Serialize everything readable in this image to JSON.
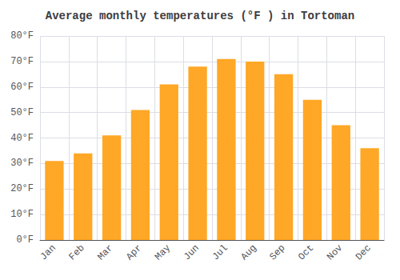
{
  "chart_data": {
    "type": "bar",
    "title": "Average monthly temperatures (°F ) in Tortoman",
    "categories": [
      "Jan",
      "Feb",
      "Mar",
      "Apr",
      "May",
      "Jun",
      "Jul",
      "Aug",
      "Sep",
      "Oct",
      "Nov",
      "Dec"
    ],
    "values": [
      31,
      34,
      41,
      51,
      61,
      68,
      71,
      70,
      65,
      55,
      45,
      36
    ],
    "color": "#FFA726",
    "ylim": [
      0,
      80
    ],
    "yticks": [
      {
        "value": 0,
        "label": "0°F"
      },
      {
        "value": 10,
        "label": "10°F"
      },
      {
        "value": 20,
        "label": "20°F"
      },
      {
        "value": 30,
        "label": "30°F"
      },
      {
        "value": 40,
        "label": "40°F"
      },
      {
        "value": 50,
        "label": "50°F"
      },
      {
        "value": 60,
        "label": "60°F"
      },
      {
        "value": 70,
        "label": "70°F"
      },
      {
        "value": 80,
        "label": "80°F"
      }
    ],
    "grid": true
  }
}
